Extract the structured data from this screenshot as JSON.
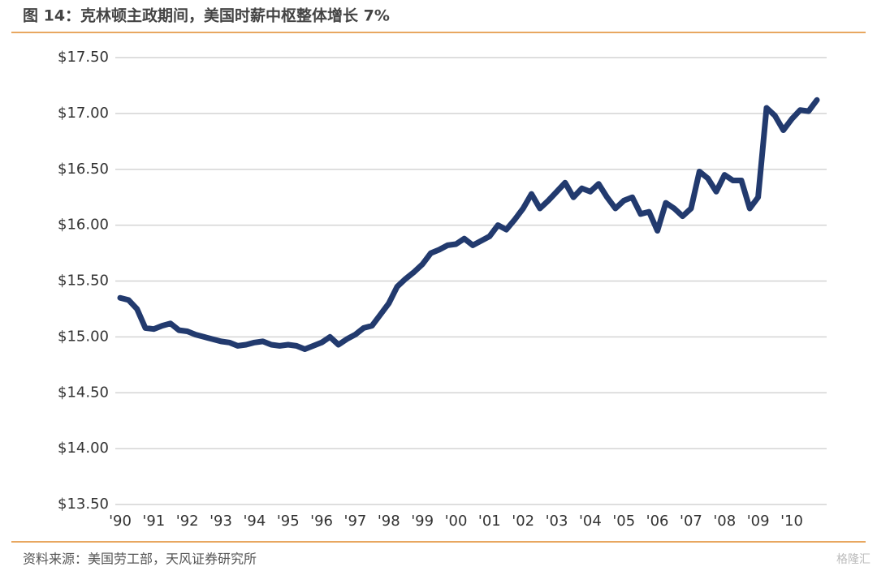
{
  "chart_data": {
    "type": "line",
    "title": "图 14：克林顿主政期间，美国时薪中枢整体增长 7%",
    "source": "资料来源：美国劳工部，天风证券研究所",
    "watermark": "格隆汇",
    "categories": [
      "'90",
      null,
      null,
      null,
      "'91",
      null,
      null,
      null,
      "'92",
      null,
      null,
      null,
      "'93",
      null,
      null,
      null,
      "'94",
      null,
      null,
      null,
      "'95",
      null,
      null,
      null,
      "'96",
      null,
      null,
      null,
      "'97",
      null,
      null,
      null,
      "'98",
      null,
      null,
      null,
      "'99",
      null,
      null,
      null,
      "'00",
      null,
      null,
      null,
      "'01",
      null,
      null,
      null,
      "'02",
      null,
      null,
      null,
      "'03",
      null,
      null,
      null,
      "'04",
      null,
      null,
      null,
      "'05",
      null,
      null,
      null,
      "'06",
      null,
      null,
      null,
      "'07",
      null,
      null,
      null,
      "'08",
      null,
      null,
      null,
      "'09",
      null,
      null,
      null,
      "'10",
      null,
      null,
      null
    ],
    "series": [
      {
        "name": "Hourly wage",
        "color": "#223a6e",
        "values": [
          15.35,
          15.33,
          15.25,
          15.08,
          15.07,
          15.1,
          15.12,
          15.06,
          15.05,
          15.02,
          15.0,
          14.98,
          14.96,
          14.95,
          14.92,
          14.93,
          14.95,
          14.96,
          14.93,
          14.92,
          14.93,
          14.92,
          14.89,
          14.92,
          14.95,
          15.0,
          14.93,
          14.98,
          15.02,
          15.08,
          15.1,
          15.2,
          15.3,
          15.45,
          15.52,
          15.58,
          15.65,
          15.75,
          15.78,
          15.82,
          15.83,
          15.88,
          15.82,
          15.86,
          15.9,
          16.0,
          15.96,
          16.05,
          16.15,
          16.28,
          16.15,
          16.22,
          16.3,
          16.38,
          16.25,
          16.33,
          16.3,
          16.37,
          16.25,
          16.15,
          16.22,
          16.25,
          16.1,
          16.12,
          15.95,
          16.2,
          16.15,
          16.08,
          16.15,
          16.48,
          16.42,
          16.3,
          16.45,
          16.4,
          16.4,
          16.15,
          16.25,
          17.05,
          16.98,
          16.85,
          16.95,
          17.03,
          17.02,
          17.12
        ]
      }
    ],
    "ylim": [
      13.5,
      17.5
    ],
    "yticks": [
      {
        "value": 13.5,
        "label": "$13.50"
      },
      {
        "value": 14,
        "label": "$14.00"
      },
      {
        "value": 14.5,
        "label": "$14.50"
      },
      {
        "value": 15,
        "label": "$15.00"
      },
      {
        "value": 15.5,
        "label": "$15.50"
      },
      {
        "value": 16,
        "label": "$16.00"
      },
      {
        "value": 16.5,
        "label": "$16.50"
      },
      {
        "value": 17,
        "label": "$17.00"
      },
      {
        "value": 17.5,
        "label": "$17.50"
      }
    ],
    "grid": true
  }
}
